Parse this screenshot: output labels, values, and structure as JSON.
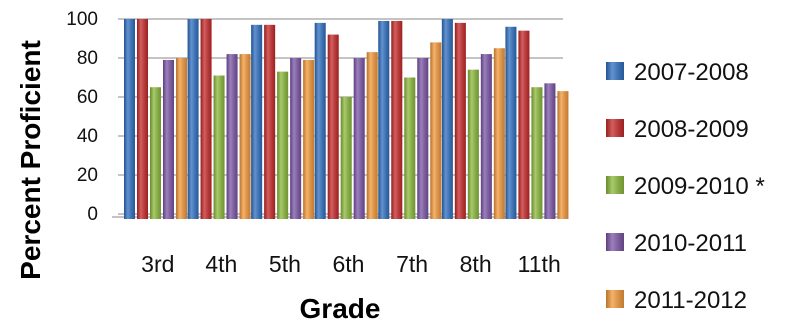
{
  "chart_data": {
    "type": "bar",
    "title": "",
    "xlabel": "Grade",
    "ylabel": "Percent Proficient",
    "ylim": [
      0,
      100
    ],
    "yticks": [
      0,
      20,
      40,
      60,
      80,
      100
    ],
    "grid": true,
    "legend_position": "right",
    "categories": [
      "3rd",
      "4th",
      "5th",
      "6th",
      "7th",
      "8th",
      "11th"
    ],
    "series": [
      {
        "name": "2007-2008",
        "color": "#2e6fc0",
        "values": [
          100,
          100,
          97,
          98,
          99,
          100,
          96
        ]
      },
      {
        "name": "2008-2009",
        "color": "#c62828",
        "values": [
          100,
          100,
          97,
          92,
          99,
          98,
          94
        ]
      },
      {
        "name": "2009-2010 *",
        "color": "#8bb93b",
        "values": [
          65,
          71,
          73,
          60,
          70,
          74,
          65
        ]
      },
      {
        "name": "2010-2011",
        "color": "#7b55a6",
        "values": [
          79,
          82,
          80,
          80,
          80,
          82,
          67
        ]
      },
      {
        "name": "2011-2012",
        "color": "#f3993a",
        "values": [
          80,
          82,
          79,
          83,
          88,
          85,
          63
        ]
      }
    ]
  }
}
